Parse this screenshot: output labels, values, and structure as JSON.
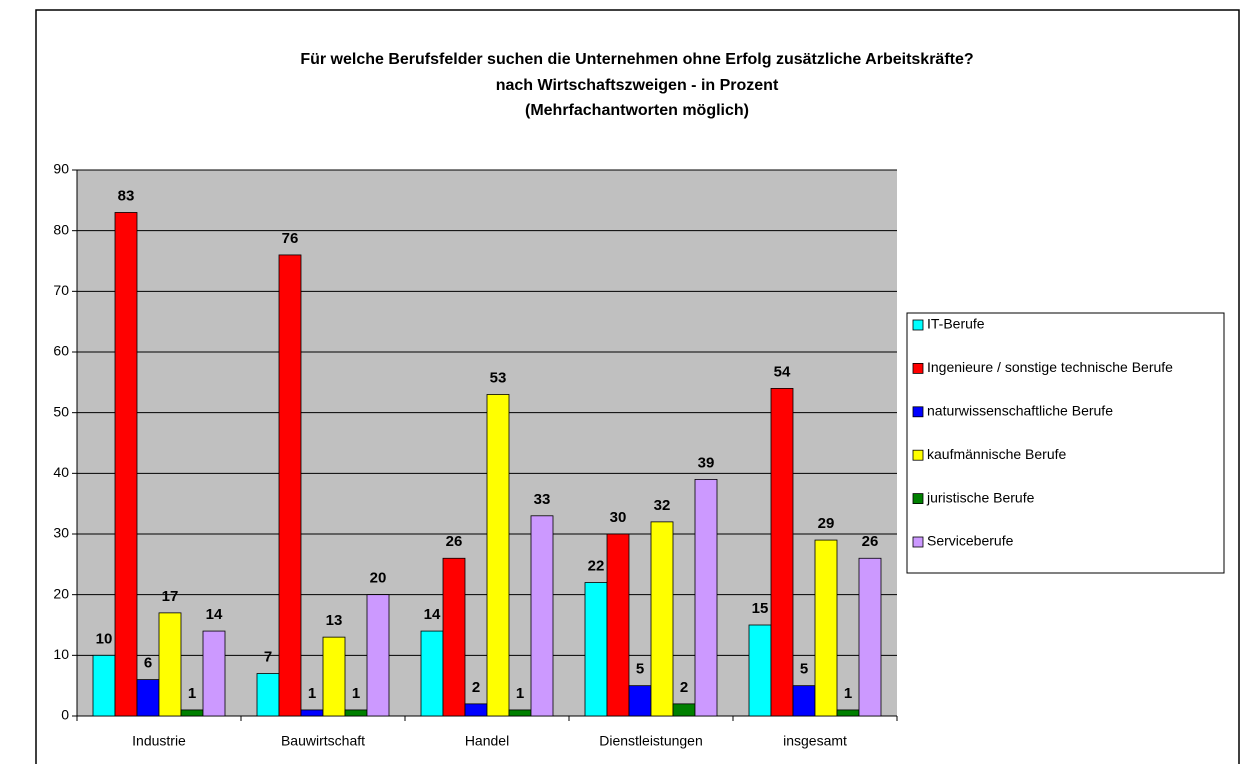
{
  "chart_data": {
    "type": "bar",
    "title": [
      "Für welche Berufsfelder suchen die Unternehmen ohne Erfolg zusätzliche Arbeitskräfte?",
      "nach Wirtschaftszweigen - in Prozent",
      "(Mehrfachantworten möglich)"
    ],
    "categories": [
      "Industrie",
      "Bauwirtschaft",
      "Handel",
      "Dienstleistungen",
      "insgesamt"
    ],
    "series": [
      {
        "name": "IT-Berufe",
        "color": "#00ffff",
        "values": [
          10,
          7,
          14,
          22,
          15
        ]
      },
      {
        "name": "Ingenieure / sonstige technische Berufe",
        "color": "#ff0000",
        "values": [
          83,
          76,
          26,
          30,
          54
        ]
      },
      {
        "name": "naturwissenschaftliche Berufe",
        "color": "#0000ff",
        "values": [
          6,
          1,
          2,
          5,
          5
        ]
      },
      {
        "name": "kaufmännische Berufe",
        "color": "#ffff00",
        "values": [
          17,
          13,
          53,
          32,
          29
        ]
      },
      {
        "name": "juristische Berufe",
        "color": "#008000",
        "values": [
          1,
          1,
          1,
          2,
          1
        ]
      },
      {
        "name": "Serviceberufe",
        "color": "#cc99ff",
        "values": [
          14,
          20,
          33,
          39,
          26
        ]
      }
    ],
    "ylim": [
      0,
      90
    ],
    "yticks": [
      0,
      10,
      20,
      30,
      40,
      50,
      60,
      70,
      80,
      90
    ],
    "grid": true,
    "legend": "right"
  }
}
